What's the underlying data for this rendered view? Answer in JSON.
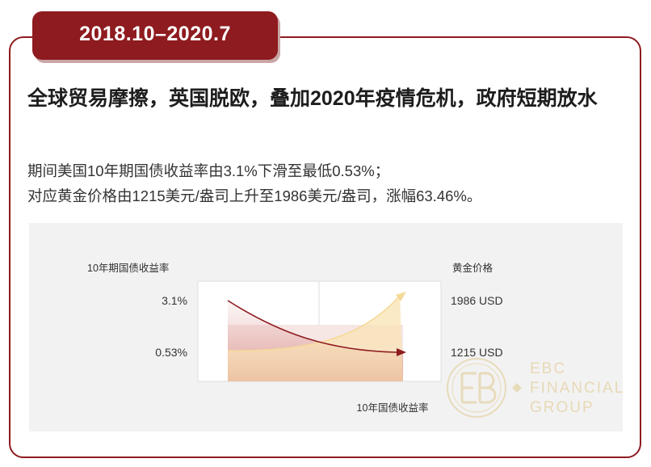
{
  "period": "2018.10–2020.7",
  "headline": "全球贸易摩擦，英国脱欧，叠加2020年疫情危机，政府短期放水",
  "description": [
    "期间美国10年期国债收益率由3.1%下滑至最低0.53%；",
    "对应黄金价格由1215美元/盎司上升至1986美元/盎司，涨幅63.46%。"
  ],
  "colors": {
    "brand": "#8e1b1f",
    "yield_line": "#8e1b1f",
    "gold_line": "#f6d998",
    "panel_bg": "#f3f2f2",
    "watermark": "#ddc585"
  },
  "chart_data": {
    "type": "line",
    "left_axis_label": "10年期国债收益率",
    "right_axis_label": "黄金价格",
    "xlabel": "10年国债收益率",
    "left_ticks": [
      "3.1%",
      "0.53%"
    ],
    "right_ticks": [
      "1986 USD",
      "1215 USD"
    ],
    "series": [
      {
        "axis": "left",
        "start": 3.1,
        "end": 0.53,
        "unit": "%",
        "color": "#8e1b1f"
      },
      {
        "axis": "right",
        "start": 1215,
        "end": 1986,
        "unit": "USD",
        "color": "#f6d998"
      }
    ],
    "grid": true
  },
  "watermark": {
    "logo_text": "EBC",
    "lines": [
      "EBC",
      "FINANCIAL",
      "GROUP"
    ]
  }
}
